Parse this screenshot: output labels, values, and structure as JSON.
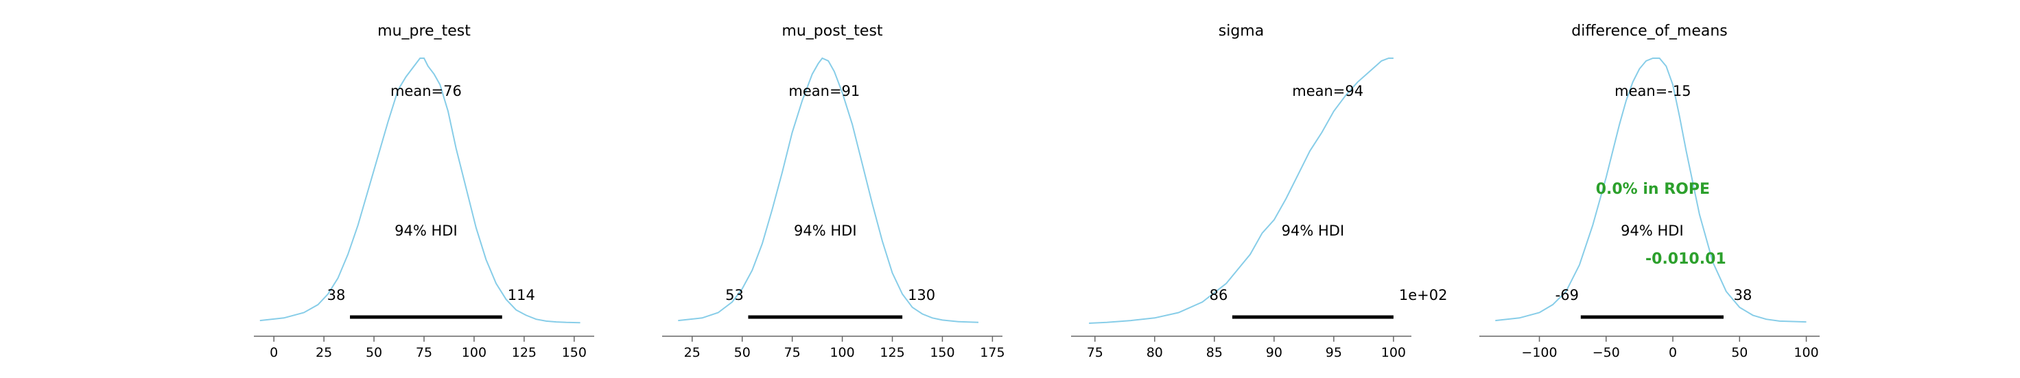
{
  "chart_data": [
    {
      "type": "area",
      "title": "mu_pre_test",
      "xlim": [
        -10,
        160
      ],
      "xticks": [
        0,
        25,
        50,
        75,
        100,
        125,
        150
      ],
      "xtick_labels": [
        "0",
        "25",
        "50",
        "75",
        "100",
        "125",
        "150"
      ],
      "curve": {
        "x": [
          -7,
          5,
          15,
          22,
          27,
          32,
          37,
          42,
          47,
          52,
          57,
          62,
          66,
          70,
          73,
          75,
          77,
          80,
          83,
          87,
          91,
          96,
          101,
          106,
          111,
          116,
          121,
          126,
          131,
          136,
          141,
          146,
          153
        ],
        "y": [
          0.01,
          0.02,
          0.04,
          0.07,
          0.11,
          0.17,
          0.26,
          0.37,
          0.5,
          0.63,
          0.76,
          0.88,
          0.93,
          0.97,
          1.0,
          1.0,
          0.97,
          0.94,
          0.9,
          0.8,
          0.66,
          0.51,
          0.36,
          0.24,
          0.15,
          0.09,
          0.05,
          0.03,
          0.015,
          0.008,
          0.005,
          0.003,
          0.002
        ]
      },
      "mean_label": "mean=76",
      "hdi": {
        "low": 38,
        "high": 114,
        "low_label": "38",
        "high_label": "114",
        "label": "94% HDI"
      }
    },
    {
      "type": "area",
      "title": "mu_post_test",
      "xlim": [
        10,
        180
      ],
      "xticks": [
        25,
        50,
        75,
        100,
        125,
        150,
        175
      ],
      "xtick_labels": [
        "25",
        "50",
        "75",
        "100",
        "125",
        "150",
        "175"
      ],
      "curve": {
        "x": [
          18,
          30,
          38,
          45,
          50,
          55,
          60,
          65,
          70,
          75,
          80,
          85,
          88,
          90,
          93,
          96,
          100,
          105,
          110,
          115,
          120,
          125,
          130,
          135,
          140,
          145,
          150,
          158,
          168
        ],
        "y": [
          0.01,
          0.02,
          0.04,
          0.08,
          0.13,
          0.2,
          0.3,
          0.43,
          0.57,
          0.72,
          0.84,
          0.94,
          0.98,
          1.0,
          0.99,
          0.95,
          0.87,
          0.75,
          0.6,
          0.45,
          0.31,
          0.19,
          0.11,
          0.06,
          0.035,
          0.02,
          0.012,
          0.006,
          0.003
        ]
      },
      "mean_label": "mean=91",
      "hdi": {
        "low": 53,
        "high": 130,
        "low_label": "53",
        "high_label": "130",
        "label": "94% HDI"
      }
    },
    {
      "type": "area",
      "title": "sigma",
      "xlim": [
        73,
        101.5
      ],
      "xticks": [
        75,
        80,
        85,
        90,
        95,
        100
      ],
      "xtick_labels": [
        "75",
        "80",
        "85",
        "90",
        "95",
        "100"
      ],
      "curve": {
        "x": [
          74.5,
          76,
          78,
          80,
          82,
          84,
          86,
          88,
          89,
          90,
          91,
          92,
          93,
          94,
          95,
          96,
          97,
          98,
          99,
          99.6,
          100
        ],
        "y": [
          0.0,
          0.003,
          0.01,
          0.02,
          0.04,
          0.08,
          0.15,
          0.26,
          0.34,
          0.39,
          0.47,
          0.56,
          0.65,
          0.72,
          0.8,
          0.86,
          0.91,
          0.95,
          0.99,
          1.0,
          1.0
        ]
      },
      "mean_label": "mean=94",
      "hdi": {
        "low": 86.5,
        "high": 100,
        "low_label": "86",
        "high_label": "1e+02",
        "label": "94% HDI"
      }
    },
    {
      "type": "area",
      "title": "difference_of_means",
      "xlim": [
        -145,
        110
      ],
      "xticks": [
        -100,
        -50,
        0,
        50,
        100
      ],
      "xtick_labels": [
        "−100",
        "−50",
        "0",
        "50",
        "100"
      ],
      "curve": {
        "x": [
          -133,
          -115,
          -100,
          -90,
          -80,
          -70,
          -60,
          -50,
          -40,
          -35,
          -30,
          -25,
          -20,
          -15,
          -10,
          -5,
          0,
          5,
          10,
          20,
          30,
          40,
          50,
          60,
          70,
          80,
          100
        ],
        "y": [
          0.01,
          0.02,
          0.04,
          0.07,
          0.12,
          0.22,
          0.37,
          0.55,
          0.75,
          0.84,
          0.91,
          0.96,
          0.99,
          1.0,
          1.0,
          0.97,
          0.9,
          0.78,
          0.65,
          0.41,
          0.23,
          0.12,
          0.06,
          0.03,
          0.015,
          0.008,
          0.005
        ]
      },
      "mean_label": "mean=-15",
      "rope_label": "0.0% in ROPE",
      "ref_label": "-0.010.01",
      "hdi": {
        "low": -69,
        "high": 38,
        "low_label": "-69",
        "high_label": "38",
        "label": "94% HDI"
      }
    }
  ],
  "colors": {
    "curve": "#87cde8",
    "hdi": "#000000",
    "axis": "#666666",
    "text": "#000000",
    "rope": "#2ca02c",
    "background": "#ffffff"
  }
}
